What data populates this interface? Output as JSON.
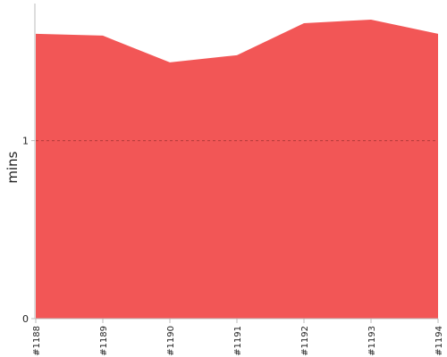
{
  "chart_data": {
    "type": "area",
    "title": "",
    "xlabel": "",
    "ylabel": "mins",
    "categories": [
      "#1188",
      "#1189",
      "#1190",
      "#1191",
      "#1192",
      "#1193",
      "#1194"
    ],
    "values": [
      1.6,
      1.59,
      1.44,
      1.48,
      1.66,
      1.68,
      1.6
    ],
    "ylim": [
      0,
      1.75
    ],
    "yticks": [
      0,
      1
    ],
    "grid": "dashed line at y = 1",
    "legend": "none",
    "series": [
      {
        "color": "#f25656",
        "values": [
          1.6,
          1.59,
          1.44,
          1.48,
          1.66,
          1.68,
          1.6
        ]
      }
    ]
  }
}
